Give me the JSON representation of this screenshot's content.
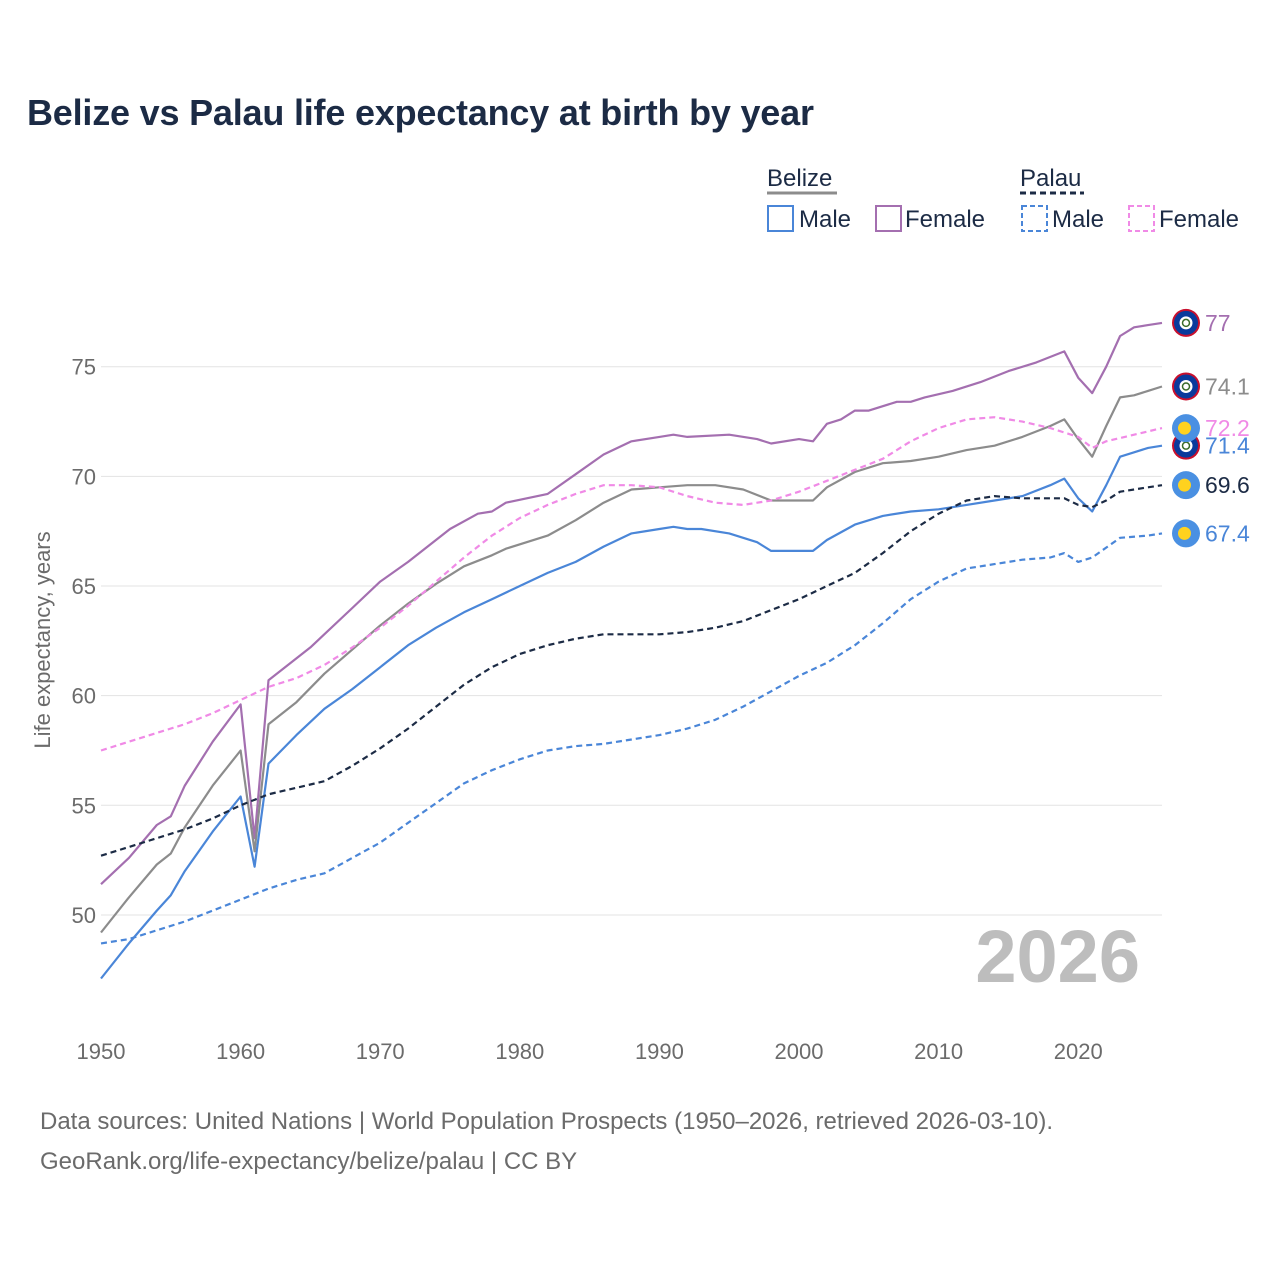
{
  "title": "Belize vs Palau life expectancy at birth by year",
  "watermark_year": "2026",
  "source_line1": "Data sources: United Nations | World Population Prospects (1950–2026, retrieved 2026-03-10).",
  "source_line2": "GeoRank.org/life-expectancy/belize/palau | CC BY",
  "legend": {
    "group1": "Belize",
    "group2": "Palau",
    "male": "Male",
    "female": "Female"
  },
  "colors": {
    "belize_total": "#8c8c8c",
    "belize_male": "#4a86d8",
    "belize_female": "#a46fb0",
    "palau_total": "#1c2b45",
    "palau_male": "#4a86d8",
    "palau_female": "#f08ae6",
    "belize_flag": "#0a3a9c",
    "palau_flag": "#4a90e2",
    "palau_moon": "#ffd21f"
  },
  "chart_data": {
    "type": "line",
    "title": "Belize vs Palau life expectancy at birth by year",
    "xlabel": "",
    "ylabel": "Life expectancy, years",
    "xlim": [
      1950,
      2026
    ],
    "ylim": [
      45.3,
      78.5
    ],
    "yticks": [
      50,
      55,
      60,
      65,
      70,
      75
    ],
    "xticks": [
      1950,
      1960,
      1970,
      1980,
      1990,
      2000,
      2010,
      2020
    ],
    "grid": true,
    "legend_position": "top-right",
    "series": [
      {
        "name": "Belize Female",
        "key": "belize_female",
        "dashed": false,
        "flag": "belize",
        "end_label": "77",
        "points": [
          [
            1950,
            51.4
          ],
          [
            1952,
            52.6
          ],
          [
            1954,
            54.1
          ],
          [
            1955,
            54.5
          ],
          [
            1956,
            55.9
          ],
          [
            1958,
            57.9
          ],
          [
            1960,
            59.6
          ],
          [
            1961,
            53.5
          ],
          [
            1962,
            60.7
          ],
          [
            1965,
            62.2
          ],
          [
            1968,
            64.0
          ],
          [
            1970,
            65.2
          ],
          [
            1972,
            66.1
          ],
          [
            1975,
            67.6
          ],
          [
            1977,
            68.3
          ],
          [
            1978,
            68.4
          ],
          [
            1979,
            68.8
          ],
          [
            1982,
            69.2
          ],
          [
            1984,
            70.1
          ],
          [
            1986,
            71.0
          ],
          [
            1988,
            71.6
          ],
          [
            1990,
            71.8
          ],
          [
            1991,
            71.9
          ],
          [
            1992,
            71.8
          ],
          [
            1995,
            71.9
          ],
          [
            1997,
            71.7
          ],
          [
            1998,
            71.5
          ],
          [
            2000,
            71.7
          ],
          [
            2001,
            71.6
          ],
          [
            2002,
            72.4
          ],
          [
            2003,
            72.6
          ],
          [
            2004,
            73.0
          ],
          [
            2005,
            73.0
          ],
          [
            2007,
            73.4
          ],
          [
            2008,
            73.4
          ],
          [
            2009,
            73.6
          ],
          [
            2011,
            73.9
          ],
          [
            2013,
            74.3
          ],
          [
            2015,
            74.8
          ],
          [
            2017,
            75.2
          ],
          [
            2019,
            75.7
          ],
          [
            2020,
            74.5
          ],
          [
            2021,
            73.8
          ],
          [
            2022,
            75.0
          ],
          [
            2023,
            76.4
          ],
          [
            2024,
            76.8
          ],
          [
            2025,
            76.9
          ],
          [
            2026,
            77.0
          ]
        ]
      },
      {
        "name": "Belize",
        "key": "belize_total",
        "dashed": false,
        "flag": "belize",
        "end_label": "74.1",
        "points": [
          [
            1950,
            49.2
          ],
          [
            1952,
            50.8
          ],
          [
            1954,
            52.3
          ],
          [
            1955,
            52.8
          ],
          [
            1956,
            54.0
          ],
          [
            1958,
            55.9
          ],
          [
            1960,
            57.5
          ],
          [
            1961,
            52.9
          ],
          [
            1962,
            58.7
          ],
          [
            1964,
            59.7
          ],
          [
            1966,
            61.0
          ],
          [
            1968,
            62.1
          ],
          [
            1970,
            63.2
          ],
          [
            1972,
            64.2
          ],
          [
            1974,
            65.1
          ],
          [
            1976,
            65.9
          ],
          [
            1978,
            66.4
          ],
          [
            1979,
            66.7
          ],
          [
            1982,
            67.3
          ],
          [
            1984,
            68.0
          ],
          [
            1986,
            68.8
          ],
          [
            1988,
            69.4
          ],
          [
            1990,
            69.5
          ],
          [
            1992,
            69.6
          ],
          [
            1994,
            69.6
          ],
          [
            1996,
            69.4
          ],
          [
            1998,
            68.9
          ],
          [
            2000,
            68.9
          ],
          [
            2001,
            68.9
          ],
          [
            2002,
            69.5
          ],
          [
            2004,
            70.2
          ],
          [
            2006,
            70.6
          ],
          [
            2008,
            70.7
          ],
          [
            2010,
            70.9
          ],
          [
            2012,
            71.2
          ],
          [
            2014,
            71.4
          ],
          [
            2016,
            71.8
          ],
          [
            2018,
            72.3
          ],
          [
            2019,
            72.6
          ],
          [
            2020,
            71.7
          ],
          [
            2021,
            70.9
          ],
          [
            2022,
            72.3
          ],
          [
            2023,
            73.6
          ],
          [
            2024,
            73.7
          ],
          [
            2025,
            73.9
          ],
          [
            2026,
            74.1
          ]
        ]
      },
      {
        "name": "Belize Male",
        "key": "belize_male",
        "dashed": false,
        "flag": "belize",
        "end_label": "71.4",
        "points": [
          [
            1950,
            47.1
          ],
          [
            1952,
            48.7
          ],
          [
            1954,
            50.2
          ],
          [
            1955,
            50.9
          ],
          [
            1956,
            52.0
          ],
          [
            1958,
            53.8
          ],
          [
            1960,
            55.4
          ],
          [
            1961,
            52.2
          ],
          [
            1962,
            56.9
          ],
          [
            1964,
            58.2
          ],
          [
            1966,
            59.4
          ],
          [
            1968,
            60.3
          ],
          [
            1970,
            61.3
          ],
          [
            1972,
            62.3
          ],
          [
            1974,
            63.1
          ],
          [
            1976,
            63.8
          ],
          [
            1978,
            64.4
          ],
          [
            1980,
            65.0
          ],
          [
            1982,
            65.6
          ],
          [
            1984,
            66.1
          ],
          [
            1986,
            66.8
          ],
          [
            1988,
            67.4
          ],
          [
            1990,
            67.6
          ],
          [
            1991,
            67.7
          ],
          [
            1992,
            67.6
          ],
          [
            1993,
            67.6
          ],
          [
            1995,
            67.4
          ],
          [
            1997,
            67.0
          ],
          [
            1998,
            66.6
          ],
          [
            2000,
            66.6
          ],
          [
            2001,
            66.6
          ],
          [
            2002,
            67.1
          ],
          [
            2004,
            67.8
          ],
          [
            2006,
            68.2
          ],
          [
            2008,
            68.4
          ],
          [
            2010,
            68.5
          ],
          [
            2012,
            68.7
          ],
          [
            2014,
            68.9
          ],
          [
            2016,
            69.1
          ],
          [
            2018,
            69.6
          ],
          [
            2019,
            69.9
          ],
          [
            2020,
            69.0
          ],
          [
            2021,
            68.4
          ],
          [
            2022,
            69.6
          ],
          [
            2023,
            70.9
          ],
          [
            2024,
            71.1
          ],
          [
            2025,
            71.3
          ],
          [
            2026,
            71.4
          ]
        ]
      },
      {
        "name": "Palau Female",
        "key": "palau_female",
        "dashed": true,
        "flag": "palau",
        "end_label": "72.2",
        "points": [
          [
            1950,
            57.5
          ],
          [
            1954,
            58.3
          ],
          [
            1956,
            58.7
          ],
          [
            1958,
            59.2
          ],
          [
            1960,
            59.8
          ],
          [
            1962,
            60.4
          ],
          [
            1964,
            60.8
          ],
          [
            1966,
            61.4
          ],
          [
            1968,
            62.2
          ],
          [
            1970,
            63.1
          ],
          [
            1972,
            64.1
          ],
          [
            1974,
            65.2
          ],
          [
            1976,
            66.3
          ],
          [
            1978,
            67.3
          ],
          [
            1980,
            68.1
          ],
          [
            1982,
            68.7
          ],
          [
            1984,
            69.2
          ],
          [
            1986,
            69.6
          ],
          [
            1988,
            69.6
          ],
          [
            1990,
            69.5
          ],
          [
            1992,
            69.1
          ],
          [
            1994,
            68.8
          ],
          [
            1996,
            68.7
          ],
          [
            1998,
            68.9
          ],
          [
            2000,
            69.3
          ],
          [
            2002,
            69.8
          ],
          [
            2004,
            70.3
          ],
          [
            2006,
            70.8
          ],
          [
            2008,
            71.6
          ],
          [
            2010,
            72.2
          ],
          [
            2012,
            72.6
          ],
          [
            2014,
            72.7
          ],
          [
            2016,
            72.5
          ],
          [
            2018,
            72.2
          ],
          [
            2020,
            71.8
          ],
          [
            2021,
            71.3
          ],
          [
            2022,
            71.6
          ],
          [
            2024,
            71.9
          ],
          [
            2026,
            72.2
          ]
        ]
      },
      {
        "name": "Palau",
        "key": "palau_total",
        "dashed": true,
        "flag": "palau",
        "end_label": "69.6",
        "points": [
          [
            1950,
            52.7
          ],
          [
            1952,
            53.1
          ],
          [
            1954,
            53.5
          ],
          [
            1956,
            53.9
          ],
          [
            1958,
            54.4
          ],
          [
            1960,
            55.0
          ],
          [
            1962,
            55.5
          ],
          [
            1964,
            55.8
          ],
          [
            1966,
            56.1
          ],
          [
            1968,
            56.8
          ],
          [
            1970,
            57.6
          ],
          [
            1972,
            58.5
          ],
          [
            1974,
            59.5
          ],
          [
            1976,
            60.5
          ],
          [
            1978,
            61.3
          ],
          [
            1980,
            61.9
          ],
          [
            1982,
            62.3
          ],
          [
            1984,
            62.6
          ],
          [
            1986,
            62.8
          ],
          [
            1988,
            62.8
          ],
          [
            1990,
            62.8
          ],
          [
            1992,
            62.9
          ],
          [
            1994,
            63.1
          ],
          [
            1996,
            63.4
          ],
          [
            1998,
            63.9
          ],
          [
            2000,
            64.4
          ],
          [
            2002,
            65.0
          ],
          [
            2004,
            65.6
          ],
          [
            2006,
            66.5
          ],
          [
            2008,
            67.5
          ],
          [
            2010,
            68.3
          ],
          [
            2012,
            68.9
          ],
          [
            2014,
            69.1
          ],
          [
            2016,
            69.0
          ],
          [
            2018,
            69.0
          ],
          [
            2019,
            69.0
          ],
          [
            2020,
            68.7
          ],
          [
            2021,
            68.6
          ],
          [
            2022,
            68.9
          ],
          [
            2023,
            69.3
          ],
          [
            2025,
            69.5
          ],
          [
            2026,
            69.6
          ]
        ]
      },
      {
        "name": "Palau Male",
        "key": "palau_male",
        "dashed": true,
        "flag": "palau",
        "end_label": "67.4",
        "points": [
          [
            1950,
            48.7
          ],
          [
            1952,
            48.9
          ],
          [
            1954,
            49.3
          ],
          [
            1956,
            49.7
          ],
          [
            1958,
            50.2
          ],
          [
            1960,
            50.7
          ],
          [
            1962,
            51.2
          ],
          [
            1964,
            51.6
          ],
          [
            1966,
            51.9
          ],
          [
            1968,
            52.6
          ],
          [
            1970,
            53.3
          ],
          [
            1972,
            54.2
          ],
          [
            1974,
            55.1
          ],
          [
            1976,
            56.0
          ],
          [
            1978,
            56.6
          ],
          [
            1980,
            57.1
          ],
          [
            1982,
            57.5
          ],
          [
            1984,
            57.7
          ],
          [
            1986,
            57.8
          ],
          [
            1988,
            58.0
          ],
          [
            1990,
            58.2
          ],
          [
            1992,
            58.5
          ],
          [
            1994,
            58.9
          ],
          [
            1996,
            59.5
          ],
          [
            1998,
            60.2
          ],
          [
            2000,
            60.9
          ],
          [
            2002,
            61.5
          ],
          [
            2004,
            62.3
          ],
          [
            2006,
            63.3
          ],
          [
            2008,
            64.4
          ],
          [
            2010,
            65.2
          ],
          [
            2012,
            65.8
          ],
          [
            2014,
            66.0
          ],
          [
            2016,
            66.2
          ],
          [
            2018,
            66.3
          ],
          [
            2019,
            66.5
          ],
          [
            2020,
            66.1
          ],
          [
            2021,
            66.3
          ],
          [
            2023,
            67.2
          ],
          [
            2025,
            67.3
          ],
          [
            2026,
            67.4
          ]
        ]
      }
    ]
  }
}
